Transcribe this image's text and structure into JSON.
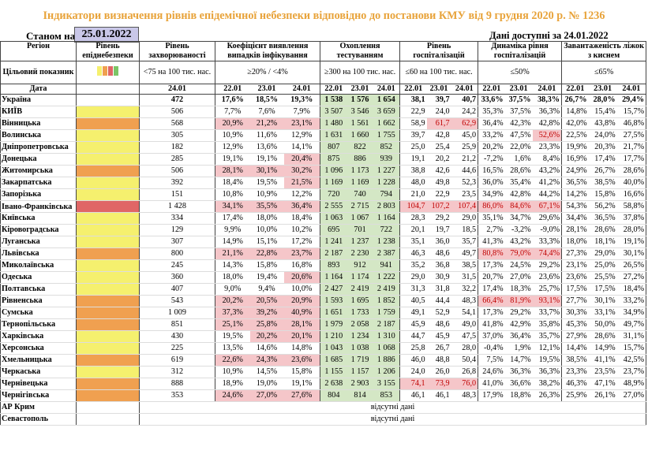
{
  "title": "Індикатори визначення рівнів епідемічної небезпеки відповідно до постанови КМУ від 9 грудня 2020 р. № 1236",
  "as_of_label": "Станом на",
  "as_of_date": "25.01.2022",
  "data_available": "Дані доступні за 24.01.2022",
  "headers": {
    "region": "Регіон",
    "target": "Цільовий показник",
    "date": "Дата",
    "level": "Рівень епіднебезпеки",
    "incidence": "Рівень захворюваності",
    "incidence_target": "<75 на 100 тис. нас.",
    "positivity": "Коефіцієнт виявлення випадків інфікування",
    "positivity_target": "≥20% / <4%",
    "testing": "Охоплення тестуванням",
    "testing_target": "≥300 на 100 тис. нас.",
    "hosp": "Рівень госпіталізацій",
    "hosp_target": "≤60 на 100 тис. нас.",
    "hosp_dyn": "Динаміка рівня госпіталізацій",
    "hosp_dyn_target": "≤50%",
    "beds": "Завантаженість ліжок з киснем",
    "beds_target": "≤65%",
    "d1": "24.01",
    "d22": "22.01",
    "d23": "23.01",
    "d24": "24.01"
  },
  "rows": [
    {
      "region": "Україна",
      "level": "",
      "inc": "472",
      "p": [
        "17,6%",
        "18,5%",
        "19,3%"
      ],
      "t": [
        "1 538",
        "1 576",
        "1 654"
      ],
      "h": [
        "38,1",
        "39,7",
        "40,7"
      ],
      "hd": [
        "33,6%",
        "37,5%",
        "38,3%"
      ],
      "b": [
        "26,7%",
        "28,0%",
        "29,4%"
      ]
    },
    {
      "region": "КИЇВ",
      "level": "yellow",
      "inc": "506",
      "p": [
        "7,7%",
        "7,6%",
        "7,9%"
      ],
      "t": [
        "3 507",
        "3 546",
        "3 659"
      ],
      "h": [
        "22,9",
        "24,0",
        "24,2"
      ],
      "hd": [
        "35,3%",
        "37,5%",
        "36,3%"
      ],
      "b": [
        "14,8%",
        "15,4%",
        "15,7%"
      ]
    },
    {
      "region": "Вінницька",
      "level": "orange",
      "inc": "568",
      "p": [
        "20,9%",
        "21,2%",
        "23,1%"
      ],
      "t": [
        "1 480",
        "1 561",
        "1 662"
      ],
      "h": [
        "58,9",
        "61,7",
        "62,9"
      ],
      "hd": [
        "36,4%",
        "42,3%",
        "42,8%"
      ],
      "b": [
        "42,0%",
        "43,8%",
        "46,8%"
      ]
    },
    {
      "region": "Волинська",
      "level": "yellow",
      "inc": "305",
      "p": [
        "10,9%",
        "11,6%",
        "12,9%"
      ],
      "t": [
        "1 631",
        "1 660",
        "1 755"
      ],
      "h": [
        "39,7",
        "42,8",
        "45,0"
      ],
      "hd": [
        "33,2%",
        "47,5%",
        "52,6%"
      ],
      "b": [
        "22,5%",
        "24,0%",
        "27,5%"
      ]
    },
    {
      "region": "Дніпропетровська",
      "level": "yellow",
      "inc": "182",
      "p": [
        "12,9%",
        "13,6%",
        "14,1%"
      ],
      "t": [
        "807",
        "822",
        "852"
      ],
      "h": [
        "25,0",
        "25,4",
        "25,9"
      ],
      "hd": [
        "20,2%",
        "22,0%",
        "23,3%"
      ],
      "b": [
        "19,9%",
        "20,3%",
        "21,7%"
      ]
    },
    {
      "region": "Донецька",
      "level": "yellow",
      "inc": "285",
      "p": [
        "19,1%",
        "19,1%",
        "20,4%"
      ],
      "t": [
        "875",
        "886",
        "939"
      ],
      "h": [
        "19,1",
        "20,2",
        "21,2"
      ],
      "hd": [
        "-7,2%",
        "1,6%",
        "8,4%"
      ],
      "b": [
        "16,9%",
        "17,4%",
        "17,7%"
      ]
    },
    {
      "region": "Житомирська",
      "level": "orange",
      "inc": "506",
      "p": [
        "28,1%",
        "30,1%",
        "30,2%"
      ],
      "t": [
        "1 096",
        "1 173",
        "1 227"
      ],
      "h": [
        "38,8",
        "42,6",
        "44,6"
      ],
      "hd": [
        "16,5%",
        "28,6%",
        "43,2%"
      ],
      "b": [
        "24,9%",
        "26,7%",
        "28,6%"
      ]
    },
    {
      "region": "Закарпатська",
      "level": "yellow",
      "inc": "392",
      "p": [
        "18,4%",
        "19,5%",
        "21,5%"
      ],
      "t": [
        "1 169",
        "1 169",
        "1 228"
      ],
      "h": [
        "48,0",
        "49,8",
        "52,3"
      ],
      "hd": [
        "36,0%",
        "35,4%",
        "41,2%"
      ],
      "b": [
        "36,5%",
        "38,5%",
        "40,0%"
      ]
    },
    {
      "region": "Запорізька",
      "level": "yellow",
      "inc": "151",
      "p": [
        "10,8%",
        "10,9%",
        "12,2%"
      ],
      "t": [
        "720",
        "740",
        "794"
      ],
      "h": [
        "21,0",
        "22,9",
        "23,5"
      ],
      "hd": [
        "34,9%",
        "42,8%",
        "44,2%"
      ],
      "b": [
        "14,2%",
        "15,8%",
        "16,6%"
      ]
    },
    {
      "region": "Івано-Франківська",
      "level": "red",
      "inc": "1 428",
      "p": [
        "34,1%",
        "35,5%",
        "36,4%"
      ],
      "t": [
        "2 555",
        "2 715",
        "2 803"
      ],
      "h": [
        "104,7",
        "107,2",
        "107,4"
      ],
      "hd": [
        "86,0%",
        "84,6%",
        "67,1%"
      ],
      "b": [
        "54,3%",
        "56,2%",
        "58,8%"
      ]
    },
    {
      "region": "Київська",
      "level": "yellow",
      "inc": "334",
      "p": [
        "17,4%",
        "18,0%",
        "18,4%"
      ],
      "t": [
        "1 063",
        "1 067",
        "1 164"
      ],
      "h": [
        "28,3",
        "29,2",
        "29,0"
      ],
      "hd": [
        "35,1%",
        "34,7%",
        "29,6%"
      ],
      "b": [
        "34,4%",
        "36,5%",
        "37,8%"
      ]
    },
    {
      "region": "Кіровоградська",
      "level": "yellow",
      "inc": "129",
      "p": [
        "9,9%",
        "10,0%",
        "10,2%"
      ],
      "t": [
        "695",
        "701",
        "722"
      ],
      "h": [
        "20,1",
        "19,7",
        "18,5"
      ],
      "hd": [
        "2,7%",
        "-3,2%",
        "-9,0%"
      ],
      "b": [
        "28,1%",
        "28,6%",
        "28,0%"
      ]
    },
    {
      "region": "Луганська",
      "level": "yellow",
      "inc": "307",
      "p": [
        "14,9%",
        "15,1%",
        "17,2%"
      ],
      "t": [
        "1 241",
        "1 237",
        "1 238"
      ],
      "h": [
        "35,1",
        "36,0",
        "35,7"
      ],
      "hd": [
        "41,3%",
        "43,2%",
        "33,3%"
      ],
      "b": [
        "18,0%",
        "18,1%",
        "19,1%"
      ]
    },
    {
      "region": "Львівська",
      "level": "orange",
      "inc": "800",
      "p": [
        "21,1%",
        "22,8%",
        "23,7%"
      ],
      "t": [
        "2 187",
        "2 230",
        "2 387"
      ],
      "h": [
        "46,3",
        "48,6",
        "49,7"
      ],
      "hd": [
        "80,8%",
        "79,0%",
        "74,4%"
      ],
      "b": [
        "27,3%",
        "29,0%",
        "30,1%"
      ]
    },
    {
      "region": "Миколаївська",
      "level": "yellow",
      "inc": "245",
      "p": [
        "14,3%",
        "15,8%",
        "16,8%"
      ],
      "t": [
        "893",
        "912",
        "941"
      ],
      "h": [
        "35,2",
        "36,8",
        "38,5"
      ],
      "hd": [
        "17,3%",
        "24,5%",
        "29,2%"
      ],
      "b": [
        "23,1%",
        "25,0%",
        "26,5%"
      ]
    },
    {
      "region": "Одеська",
      "level": "yellow",
      "inc": "360",
      "p": [
        "18,0%",
        "19,4%",
        "20,6%"
      ],
      "t": [
        "1 164",
        "1 174",
        "1 222"
      ],
      "h": [
        "29,0",
        "30,9",
        "31,5"
      ],
      "hd": [
        "20,7%",
        "27,0%",
        "23,6%"
      ],
      "b": [
        "23,6%",
        "25,5%",
        "27,2%"
      ]
    },
    {
      "region": "Полтавська",
      "level": "yellow",
      "inc": "407",
      "p": [
        "9,0%",
        "9,4%",
        "10,0%"
      ],
      "t": [
        "2 427",
        "2 419",
        "2 419"
      ],
      "h": [
        "31,3",
        "31,8",
        "32,2"
      ],
      "hd": [
        "17,4%",
        "18,3%",
        "25,7%"
      ],
      "b": [
        "17,5%",
        "17,5%",
        "18,4%"
      ]
    },
    {
      "region": "Рівненська",
      "level": "orange",
      "inc": "543",
      "p": [
        "20,2%",
        "20,5%",
        "20,9%"
      ],
      "t": [
        "1 593",
        "1 695",
        "1 852"
      ],
      "h": [
        "40,5",
        "44,4",
        "48,3"
      ],
      "hd": [
        "66,4%",
        "81,9%",
        "93,1%"
      ],
      "b": [
        "27,7%",
        "30,1%",
        "33,2%"
      ]
    },
    {
      "region": "Сумська",
      "level": "orange",
      "inc": "1 009",
      "p": [
        "37,3%",
        "39,2%",
        "40,9%"
      ],
      "t": [
        "1 651",
        "1 733",
        "1 759"
      ],
      "h": [
        "49,1",
        "52,9",
        "54,1"
      ],
      "hd": [
        "17,3%",
        "29,2%",
        "33,7%"
      ],
      "b": [
        "30,3%",
        "33,1%",
        "34,9%"
      ]
    },
    {
      "region": "Тернопільська",
      "level": "orange",
      "inc": "851",
      "p": [
        "25,1%",
        "25,8%",
        "28,1%"
      ],
      "t": [
        "1 979",
        "2 058",
        "2 187"
      ],
      "h": [
        "45,9",
        "48,6",
        "49,0"
      ],
      "hd": [
        "41,8%",
        "42,9%",
        "35,8%"
      ],
      "b": [
        "45,3%",
        "50,0%",
        "49,7%"
      ]
    },
    {
      "region": "Харківська",
      "level": "yellow",
      "inc": "430",
      "p": [
        "19,5%",
        "20,2%",
        "20,1%"
      ],
      "t": [
        "1 210",
        "1 234",
        "1 310"
      ],
      "h": [
        "44,7",
        "45,9",
        "47,5"
      ],
      "hd": [
        "37,0%",
        "36,4%",
        "35,7%"
      ],
      "b": [
        "27,9%",
        "28,6%",
        "31,1%"
      ]
    },
    {
      "region": "Херсонська",
      "level": "yellow",
      "inc": "225",
      "p": [
        "13,5%",
        "14,6%",
        "14,8%"
      ],
      "t": [
        "1 043",
        "1 038",
        "1 068"
      ],
      "h": [
        "25,8",
        "26,7",
        "28,0"
      ],
      "hd": [
        "-0,4%",
        "1,9%",
        "12,1%"
      ],
      "b": [
        "14,4%",
        "14,9%",
        "15,7%"
      ]
    },
    {
      "region": "Хмельницька",
      "level": "orange",
      "inc": "619",
      "p": [
        "22,6%",
        "24,3%",
        "23,6%"
      ],
      "t": [
        "1 685",
        "1 719",
        "1 886"
      ],
      "h": [
        "46,0",
        "48,8",
        "50,4"
      ],
      "hd": [
        "7,5%",
        "14,7%",
        "19,5%"
      ],
      "b": [
        "38,5%",
        "41,1%",
        "42,5%"
      ]
    },
    {
      "region": "Черкаська",
      "level": "yellow",
      "inc": "312",
      "p": [
        "10,9%",
        "14,5%",
        "15,8%"
      ],
      "t": [
        "1 155",
        "1 157",
        "1 206"
      ],
      "h": [
        "24,0",
        "26,0",
        "26,8"
      ],
      "hd": [
        "24,6%",
        "36,3%",
        "36,3%"
      ],
      "b": [
        "23,3%",
        "23,5%",
        "23,7%"
      ]
    },
    {
      "region": "Чернівецька",
      "level": "orange",
      "inc": "888",
      "p": [
        "18,9%",
        "19,0%",
        "19,1%"
      ],
      "t": [
        "2 638",
        "2 903",
        "3 155"
      ],
      "h": [
        "74,1",
        "73,9",
        "76,0"
      ],
      "hd": [
        "41,0%",
        "36,6%",
        "38,2%"
      ],
      "b": [
        "46,3%",
        "47,1%",
        "48,9%"
      ]
    },
    {
      "region": "Чернігівська",
      "level": "orange",
      "inc": "353",
      "p": [
        "24,6%",
        "27,0%",
        "27,6%"
      ],
      "t": [
        "804",
        "814",
        "853"
      ],
      "h": [
        "46,1",
        "46,1",
        "48,3"
      ],
      "hd": [
        "17,9%",
        "18,8%",
        "26,3%"
      ],
      "b": [
        "25,9%",
        "26,1%",
        "27,0%"
      ]
    }
  ],
  "missing_rows": [
    {
      "region": "АР Крим",
      "note": "відсутні дані"
    },
    {
      "region": "Севастополь",
      "note": "відсутні дані"
    }
  ],
  "colors": {
    "yellow": "#f5f06e",
    "orange": "#f0a050",
    "red": "#e06666",
    "green": "#7cc567",
    "pink": "#f5c6c9",
    "testing_green": "#d4e7c5",
    "title": "#e8a33a"
  }
}
